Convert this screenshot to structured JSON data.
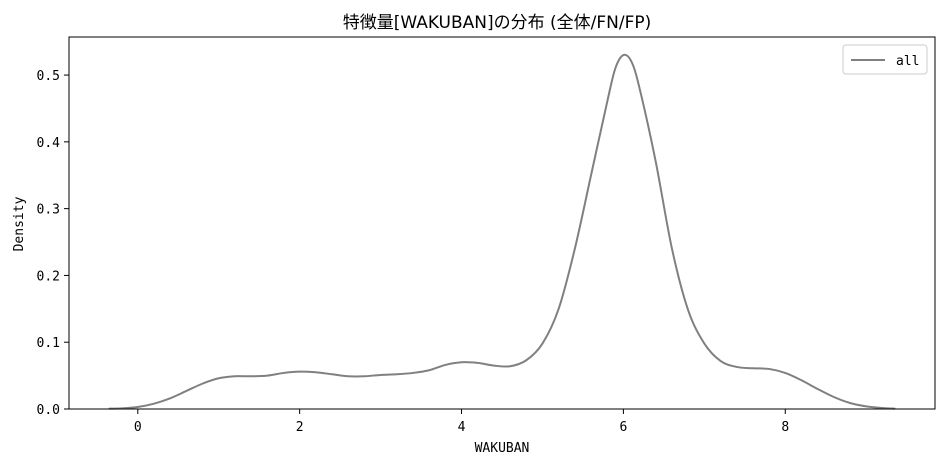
{
  "chart_data": {
    "type": "line",
    "title": "特徴量[WAKUBAN]の分布 (全体/FN/FP)",
    "xlabel": "WAKUBAN",
    "ylabel": "Density",
    "xlim": [
      -0.85,
      9.85
    ],
    "ylim": [
      0,
      0.557
    ],
    "x_ticks": [
      0,
      2,
      4,
      6,
      8
    ],
    "y_ticks": [
      0.0,
      0.1,
      0.2,
      0.3,
      0.4,
      0.5
    ],
    "x_tick_labels": [
      "0",
      "2",
      "4",
      "6",
      "8"
    ],
    "y_tick_labels": [
      "0.0",
      "0.1",
      "0.2",
      "0.3",
      "0.4",
      "0.5"
    ],
    "legend_position": "top-right",
    "grid": false,
    "series": [
      {
        "name": "all",
        "color": "#808080",
        "points": [
          [
            -0.35,
            0.0005
          ],
          [
            -0.2,
            0.001
          ],
          [
            0.0,
            0.003
          ],
          [
            0.2,
            0.008
          ],
          [
            0.4,
            0.016
          ],
          [
            0.6,
            0.027
          ],
          [
            0.8,
            0.038
          ],
          [
            1.0,
            0.046
          ],
          [
            1.2,
            0.049
          ],
          [
            1.4,
            0.049
          ],
          [
            1.6,
            0.05
          ],
          [
            1.8,
            0.054
          ],
          [
            2.0,
            0.056
          ],
          [
            2.2,
            0.055
          ],
          [
            2.4,
            0.052
          ],
          [
            2.6,
            0.049
          ],
          [
            2.8,
            0.049
          ],
          [
            3.0,
            0.051
          ],
          [
            3.2,
            0.052
          ],
          [
            3.4,
            0.054
          ],
          [
            3.6,
            0.058
          ],
          [
            3.8,
            0.066
          ],
          [
            4.0,
            0.07
          ],
          [
            4.2,
            0.069
          ],
          [
            4.4,
            0.065
          ],
          [
            4.6,
            0.064
          ],
          [
            4.8,
            0.073
          ],
          [
            5.0,
            0.098
          ],
          [
            5.2,
            0.15
          ],
          [
            5.4,
            0.24
          ],
          [
            5.6,
            0.35
          ],
          [
            5.8,
            0.46
          ],
          [
            5.9,
            0.51
          ],
          [
            6.0,
            0.53
          ],
          [
            6.1,
            0.52
          ],
          [
            6.2,
            0.48
          ],
          [
            6.4,
            0.37
          ],
          [
            6.6,
            0.24
          ],
          [
            6.8,
            0.148
          ],
          [
            7.0,
            0.098
          ],
          [
            7.2,
            0.072
          ],
          [
            7.4,
            0.063
          ],
          [
            7.6,
            0.061
          ],
          [
            7.8,
            0.06
          ],
          [
            8.0,
            0.054
          ],
          [
            8.2,
            0.043
          ],
          [
            8.4,
            0.03
          ],
          [
            8.6,
            0.018
          ],
          [
            8.8,
            0.009
          ],
          [
            9.0,
            0.004
          ],
          [
            9.2,
            0.0015
          ],
          [
            9.35,
            0.0005
          ]
        ]
      }
    ]
  }
}
